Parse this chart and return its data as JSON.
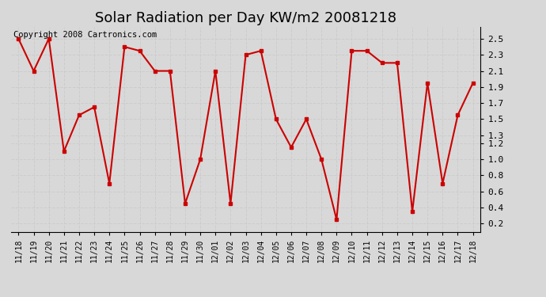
{
  "title": "Solar Radiation per Day KW/m2 20081218",
  "copyright_text": "Copyright 2008 Cartronics.com",
  "dates": [
    "11/18",
    "11/19",
    "11/20",
    "11/21",
    "11/22",
    "11/23",
    "11/24",
    "11/25",
    "11/26",
    "11/27",
    "11/28",
    "11/29",
    "11/30",
    "12/01",
    "12/02",
    "12/03",
    "12/04",
    "12/05",
    "12/06",
    "12/07",
    "12/08",
    "12/09",
    "12/10",
    "12/11",
    "12/12",
    "12/13",
    "12/14",
    "12/15",
    "12/16",
    "12/17",
    "12/18"
  ],
  "values": [
    2.5,
    2.1,
    2.5,
    1.1,
    1.55,
    1.65,
    0.7,
    2.4,
    2.35,
    2.1,
    2.1,
    0.45,
    1.0,
    2.1,
    0.45,
    2.3,
    2.35,
    1.5,
    1.15,
    1.5,
    1.0,
    0.25,
    2.35,
    2.35,
    2.2,
    2.2,
    0.35,
    1.95,
    0.7,
    1.55,
    1.95
  ],
  "line_color": "#cc0000",
  "marker": "s",
  "marker_size": 3,
  "line_width": 1.5,
  "ylim": [
    0.1,
    2.65
  ],
  "yticks": [
    0.2,
    0.4,
    0.6,
    0.8,
    1.0,
    1.2,
    1.3,
    1.5,
    1.7,
    1.9,
    2.1,
    2.3,
    2.5
  ],
  "grid_color": "#cccccc",
  "bg_color": "#d8d8d8",
  "title_fontsize": 13,
  "copyright_fontsize": 7.5,
  "tick_fontsize": 7,
  "ytick_fontsize": 8
}
